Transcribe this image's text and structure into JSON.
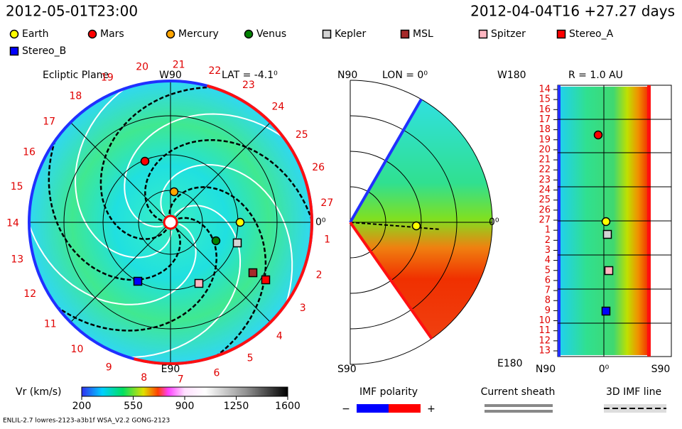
{
  "header": {
    "time": "2012-05-01T23:00",
    "run": "2012-04-04T16 +27.27 days"
  },
  "legend": [
    {
      "label": "Earth",
      "color": "#ffff00",
      "shape": "circle"
    },
    {
      "label": "Mars",
      "color": "#ff0000",
      "shape": "circle"
    },
    {
      "label": "Mercury",
      "color": "#ffa500",
      "shape": "circle"
    },
    {
      "label": "Venus",
      "color": "#008000",
      "shape": "circle"
    },
    {
      "label": "Kepler",
      "color": "#d3d3d3",
      "shape": "square"
    },
    {
      "label": "MSL",
      "color": "#a52a2a",
      "shape": "square"
    },
    {
      "label": "Spitzer",
      "color": "#ffb6c1",
      "shape": "square"
    },
    {
      "label": "Stereo_A",
      "color": "#ff0000",
      "shape": "square"
    },
    {
      "label": "Stereo_B",
      "color": "#0000ff",
      "shape": "square"
    }
  ],
  "ecliptic": {
    "title": "Ecliptic Plane",
    "top": "W90",
    "lat": "LAT = -4.1⁰",
    "bottom": "E90",
    "right": "0⁰",
    "ring_labels": [
      "1",
      "2",
      "3",
      "4",
      "5",
      "6",
      "7",
      "8",
      "9",
      "10",
      "11",
      "12",
      "13",
      "14",
      "15",
      "16",
      "17",
      "18",
      "19",
      "20",
      "21",
      "22",
      "23",
      "24",
      "25",
      "26",
      "27"
    ]
  },
  "meridional": {
    "top": "N90",
    "lon": "LON = 0⁰",
    "bottom": "S90",
    "right": "0⁰"
  },
  "radial": {
    "top": "W180",
    "r": "R = 1.0 AU",
    "bottom": "E180",
    "x_labels": [
      "N90",
      "0⁰",
      "S90"
    ],
    "row_labels": [
      "14",
      "15",
      "16",
      "17",
      "18",
      "19",
      "20",
      "21",
      "22",
      "23",
      "24",
      "25",
      "26",
      "27",
      "1",
      "2",
      "3",
      "4",
      "5",
      "6",
      "7",
      "8",
      "9",
      "10",
      "11",
      "12",
      "13"
    ]
  },
  "colorbar": {
    "label": "Vr (km/s)",
    "range": [
      200,
      1600
    ],
    "ticks": [
      200,
      550,
      900,
      1250,
      1600
    ]
  },
  "imf": {
    "title": "IMF polarity",
    "minus": "−",
    "plus": "+"
  },
  "sheath": "Current sheath",
  "imf_line": "3D IMF line",
  "footer": "ENLIL-2.7 lowres-2123-a3b1f WSA_V2.2 GONG-2123"
}
